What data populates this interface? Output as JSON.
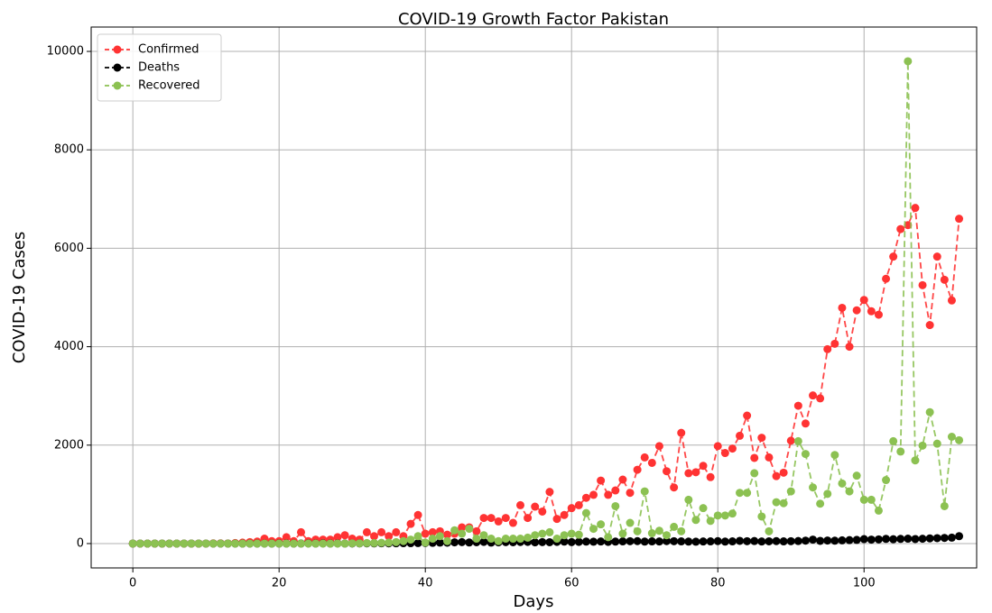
{
  "chart_data": {
    "type": "line",
    "title": "COVID-19 Growth Factor Pakistan",
    "xlabel": "Days",
    "ylabel": "COVID-19 Cases",
    "x": [
      0,
      1,
      2,
      3,
      4,
      5,
      6,
      7,
      8,
      9,
      10,
      11,
      12,
      13,
      14,
      15,
      16,
      17,
      18,
      19,
      20,
      21,
      22,
      23,
      24,
      25,
      26,
      27,
      28,
      29,
      30,
      31,
      32,
      33,
      34,
      35,
      36,
      37,
      38,
      39,
      40,
      41,
      42,
      43,
      44,
      45,
      46,
      47,
      48,
      49,
      50,
      51,
      52,
      53,
      54,
      55,
      56,
      57,
      58,
      59,
      60,
      61,
      62,
      63,
      64,
      65,
      66,
      67,
      68,
      69,
      70,
      71,
      72,
      73,
      74,
      75,
      76,
      77,
      78,
      79,
      80,
      81,
      82,
      83,
      84,
      85,
      86,
      87,
      88,
      89,
      90,
      91,
      92,
      93,
      94,
      95,
      96,
      97,
      98,
      99,
      100,
      101,
      102,
      103,
      104,
      105,
      106,
      107,
      108,
      109,
      110,
      111,
      112,
      113
    ],
    "series": [
      {
        "name": "Confirmed",
        "color": "#ff3333",
        "values": [
          0,
          0,
          0,
          0,
          0,
          0,
          0,
          0,
          0,
          0,
          0,
          3,
          5,
          2,
          10,
          20,
          30,
          40,
          100,
          50,
          50,
          130,
          50,
          230,
          50,
          80,
          80,
          80,
          130,
          170,
          100,
          80,
          230,
          150,
          230,
          150,
          230,
          150,
          400,
          580,
          200,
          230,
          250,
          180,
          200,
          330,
          330,
          250,
          520,
          520,
          450,
          520,
          420,
          780,
          520,
          750,
          650,
          1050,
          500,
          580,
          720,
          780,
          930,
          990,
          1280,
          990,
          1080,
          1300,
          1030,
          1500,
          1750,
          1640,
          1980,
          1470,
          1140,
          2250,
          1430,
          1450,
          1580,
          1350,
          1980,
          1840,
          1930,
          2190,
          2600,
          1740,
          2150,
          1750,
          1370,
          1440,
          2090,
          2800,
          2440,
          3010,
          2950,
          3950,
          4060,
          4790,
          4000,
          4740,
          4950,
          4720,
          4650,
          5380,
          5830,
          6390,
          6470,
          6820,
          5250,
          4440,
          5830,
          5360,
          4940,
          6600
        ]
      },
      {
        "name": "Deaths",
        "color": "#000000",
        "values": [
          0,
          0,
          0,
          0,
          0,
          0,
          0,
          0,
          0,
          0,
          0,
          0,
          0,
          0,
          0,
          0,
          0,
          0,
          0,
          0,
          1,
          1,
          0,
          1,
          2,
          1,
          3,
          1,
          2,
          1,
          2,
          3,
          5,
          4,
          6,
          5,
          6,
          8,
          8,
          10,
          12,
          15,
          20,
          18,
          25,
          30,
          22,
          28,
          35,
          20,
          25,
          30,
          28,
          32,
          35,
          25,
          30,
          28,
          35,
          40,
          30,
          35,
          40,
          38,
          42,
          35,
          40,
          45,
          48,
          50,
          40,
          45,
          42,
          50,
          48,
          45,
          40,
          38,
          42,
          45,
          50,
          40,
          45,
          55,
          48,
          52,
          42,
          46,
          50,
          45,
          48,
          52,
          60,
          80,
          55,
          62,
          58,
          65,
          70,
          75,
          90,
          80,
          85,
          95,
          88,
          95,
          100,
          92,
          98,
          105,
          110,
          115,
          120,
          150
        ]
      },
      {
        "name": "Recovered",
        "color": "#8cc152",
        "values": [
          0,
          0,
          0,
          0,
          0,
          0,
          0,
          0,
          0,
          0,
          0,
          0,
          0,
          0,
          0,
          0,
          0,
          0,
          0,
          0,
          0,
          0,
          0,
          0,
          0,
          0,
          0,
          0,
          0,
          0,
          5,
          5,
          10,
          10,
          15,
          20,
          30,
          50,
          80,
          150,
          20,
          100,
          150,
          50,
          270,
          200,
          300,
          100,
          170,
          100,
          50,
          100,
          100,
          100,
          120,
          170,
          200,
          230,
          100,
          170,
          200,
          180,
          620,
          300,
          390,
          130,
          760,
          200,
          420,
          250,
          1060,
          210,
          260,
          170,
          340,
          250,
          890,
          480,
          720,
          460,
          570,
          570,
          610,
          1030,
          1030,
          1430,
          550,
          250,
          840,
          820,
          1060,
          2080,
          1820,
          1140,
          810,
          1010,
          1800,
          1220,
          1060,
          1380,
          890,
          890,
          670,
          1290,
          2080,
          1870,
          9800,
          1690,
          1990,
          2670,
          2030,
          760,
          2170,
          2100
        ]
      }
    ],
    "xlim": [
      -5.7,
      115.4
    ],
    "ylim": [
      -495,
      10495
    ],
    "xticks": [
      0,
      20,
      40,
      60,
      80,
      100
    ],
    "yticks": [
      0,
      2000,
      4000,
      6000,
      8000,
      10000
    ],
    "grid": true,
    "legend": "upper left",
    "linestyle": "dashed",
    "marker": "circle"
  }
}
